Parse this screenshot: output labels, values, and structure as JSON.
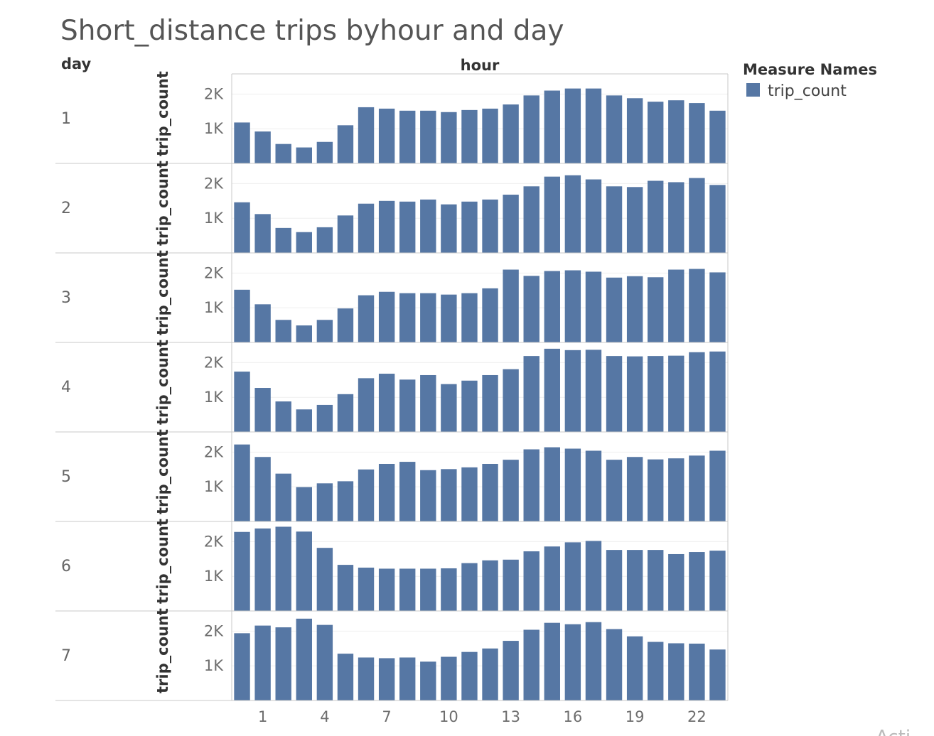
{
  "colors": {
    "bar": "#5677a4",
    "grid": "#efefef",
    "border": "#c8c8c8"
  },
  "chart_data": {
    "type": "bar",
    "title": "Short_distance trips byhour and day",
    "row_header": "day",
    "column_header": "hour",
    "ylabel": "trip_count",
    "ylim": [
      0,
      2500
    ],
    "y_ticks": [
      {
        "value": 1000,
        "label": "1K"
      },
      {
        "value": 2000,
        "label": "2K"
      }
    ],
    "x": [
      0,
      1,
      2,
      3,
      4,
      5,
      6,
      7,
      8,
      9,
      10,
      11,
      12,
      13,
      14,
      15,
      16,
      17,
      18,
      19,
      20,
      21,
      22,
      23
    ],
    "x_tick_labels": [
      {
        "x": 1,
        "label": "1"
      },
      {
        "x": 4,
        "label": "4"
      },
      {
        "x": 7,
        "label": "7"
      },
      {
        "x": 10,
        "label": "10"
      },
      {
        "x": 13,
        "label": "13"
      },
      {
        "x": 16,
        "label": "16"
      },
      {
        "x": 19,
        "label": "19"
      },
      {
        "x": 22,
        "label": "22"
      }
    ],
    "legend": {
      "title": "Measure Names",
      "items": [
        {
          "label": "trip_count",
          "color": "#5677a4"
        }
      ]
    },
    "rows": [
      {
        "day": "1",
        "values": [
          1180,
          920,
          560,
          460,
          620,
          1100,
          1620,
          1580,
          1520,
          1520,
          1480,
          1540,
          1580,
          1700,
          1960,
          2100,
          2160,
          2160,
          1960,
          1880,
          1780,
          1820,
          1740,
          1520
        ]
      },
      {
        "day": "2",
        "values": [
          1460,
          1120,
          720,
          600,
          740,
          1080,
          1420,
          1500,
          1480,
          1540,
          1400,
          1480,
          1540,
          1680,
          1920,
          2200,
          2240,
          2120,
          1920,
          1900,
          2080,
          2040,
          2160,
          1960
        ]
      },
      {
        "day": "3",
        "values": [
          1520,
          1100,
          650,
          490,
          650,
          980,
          1360,
          1460,
          1420,
          1420,
          1380,
          1420,
          1560,
          2100,
          1920,
          2060,
          2080,
          2040,
          1870,
          1910,
          1880,
          2100,
          2120,
          2020
        ]
      },
      {
        "day": "4",
        "values": [
          1740,
          1270,
          880,
          650,
          780,
          1090,
          1550,
          1680,
          1510,
          1640,
          1380,
          1480,
          1640,
          1810,
          2190,
          2400,
          2360,
          2370,
          2190,
          2180,
          2190,
          2200,
          2300,
          2320
        ]
      },
      {
        "day": "5",
        "values": [
          2220,
          1860,
          1380,
          990,
          1100,
          1160,
          1500,
          1660,
          1720,
          1480,
          1510,
          1560,
          1660,
          1780,
          2080,
          2140,
          2100,
          2040,
          1780,
          1860,
          1790,
          1820,
          1900,
          2040
        ]
      },
      {
        "day": "6",
        "values": [
          2280,
          2380,
          2430,
          2290,
          1820,
          1330,
          1250,
          1220,
          1220,
          1220,
          1230,
          1380,
          1460,
          1480,
          1720,
          1860,
          1980,
          2020,
          1760,
          1760,
          1760,
          1640,
          1700,
          1740
        ]
      },
      {
        "day": "7",
        "values": [
          1940,
          2160,
          2110,
          2360,
          2180,
          1350,
          1240,
          1220,
          1240,
          1120,
          1260,
          1400,
          1500,
          1720,
          2040,
          2240,
          2200,
          2260,
          2060,
          1850,
          1690,
          1650,
          1640,
          1470
        ]
      }
    ]
  },
  "watermark": "Acti"
}
